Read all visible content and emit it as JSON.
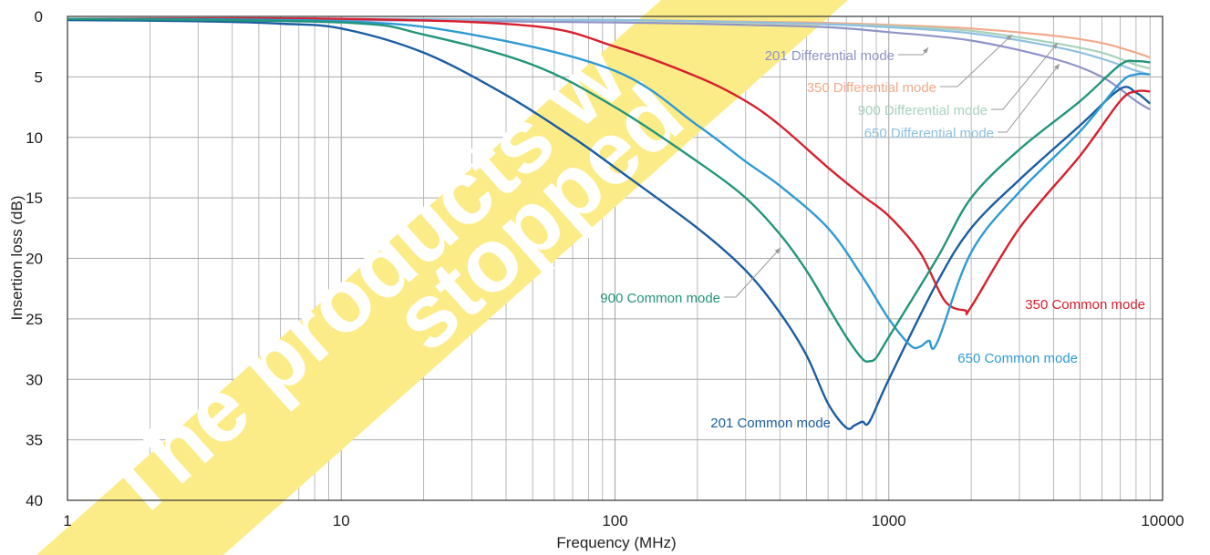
{
  "chart_data": {
    "type": "line",
    "title": "",
    "xlabel": "Frequency (MHz)",
    "ylabel": "Insertion loss (dB)",
    "x_scale": "log",
    "xlim": [
      1,
      10000
    ],
    "ylim": [
      0,
      40
    ],
    "y_inverted": true,
    "grid": true,
    "x_ticks": [
      "1",
      "10",
      "100",
      "1000",
      "10000"
    ],
    "y_ticks": [
      "0",
      "5",
      "10",
      "15",
      "20",
      "25",
      "30",
      "35",
      "40"
    ],
    "series": [
      {
        "name": "201 Differential mode",
        "color": "#8f93c6",
        "x": [
          1,
          10,
          100,
          300,
          600,
          1000,
          2000,
          4000,
          6000,
          8000,
          9000
        ],
        "y": [
          0.2,
          0.3,
          0.5,
          0.7,
          0.9,
          1.3,
          2.0,
          3.5,
          5.0,
          7.0,
          7.7
        ]
      },
      {
        "name": "350 Differential mode",
        "color": "#f1a98a",
        "x": [
          1,
          10,
          100,
          500,
          1000,
          2000,
          4000,
          6000,
          8000,
          9000
        ],
        "y": [
          0.2,
          0.2,
          0.3,
          0.5,
          0.7,
          1.0,
          1.6,
          2.2,
          3.0,
          3.4
        ]
      },
      {
        "name": "900 Differential mode",
        "color": "#a8d1bd",
        "x": [
          1,
          10,
          100,
          500,
          1000,
          2000,
          4000,
          6000,
          8000,
          9000
        ],
        "y": [
          0.2,
          0.2,
          0.3,
          0.6,
          0.8,
          1.2,
          2.2,
          3.0,
          4.0,
          4.3
        ]
      },
      {
        "name": "650 Differential mode",
        "color": "#8fc0e0",
        "x": [
          1,
          10,
          100,
          500,
          1000,
          2000,
          4000,
          6000,
          8000,
          9000
        ],
        "y": [
          0.2,
          0.2,
          0.3,
          0.6,
          0.9,
          1.4,
          2.5,
          3.5,
          4.5,
          4.8
        ]
      },
      {
        "name": "201 Common mode",
        "color": "#1b5da1",
        "x": [
          1,
          3,
          6,
          10,
          20,
          40,
          70,
          100,
          200,
          300,
          400,
          500,
          600,
          700,
          750,
          800,
          850,
          1000,
          1500,
          2000,
          3000,
          5000,
          7000,
          8000,
          9000
        ],
        "y": [
          0.3,
          0.4,
          0.6,
          1.0,
          3.0,
          6.5,
          10.0,
          12.5,
          17.5,
          21.0,
          24.5,
          28.0,
          32.0,
          34.0,
          33.8,
          33.5,
          33.5,
          30.0,
          22.0,
          17.5,
          13.5,
          9.0,
          6.0,
          6.3,
          7.2
        ]
      },
      {
        "name": "350 Common mode",
        "color": "#d7202e",
        "x": [
          1,
          10,
          50,
          100,
          200,
          300,
          400,
          600,
          800,
          1000,
          1300,
          1600,
          1900,
          2000,
          3000,
          5000,
          7000,
          8000,
          9000
        ],
        "y": [
          0.2,
          0.2,
          0.8,
          2.5,
          5.0,
          7.0,
          9.0,
          12.5,
          14.8,
          16.5,
          19.5,
          23.5,
          24.3,
          24.0,
          17.5,
          11.5,
          7.0,
          6.2,
          6.2
        ]
      },
      {
        "name": "650 Common mode",
        "color": "#2f9ad4",
        "x": [
          1,
          10,
          30,
          100,
          200,
          300,
          400,
          600,
          800,
          1000,
          1200,
          1300,
          1400,
          1500,
          2000,
          3000,
          5000,
          7000,
          8000,
          9000
        ],
        "y": [
          0.2,
          0.4,
          1.5,
          4.5,
          9.0,
          12.0,
          14.0,
          17.5,
          21.5,
          25.0,
          27.2,
          27.3,
          26.8,
          27.0,
          19.5,
          14.5,
          9.5,
          5.5,
          4.8,
          4.8
        ]
      },
      {
        "name": "900 Common mode",
        "color": "#22957a",
        "x": [
          1,
          10,
          20,
          50,
          100,
          200,
          300,
          400,
          500,
          600,
          700,
          800,
          850,
          900,
          1000,
          1500,
          2000,
          3000,
          5000,
          7000,
          8000,
          9000
        ],
        "y": [
          0.2,
          0.5,
          1.5,
          4.0,
          7.5,
          12.0,
          15.0,
          18.0,
          21.0,
          24.0,
          26.5,
          28.3,
          28.5,
          28.2,
          26.5,
          20.0,
          15.0,
          11.0,
          7.0,
          4.0,
          3.7,
          3.8
        ]
      }
    ],
    "annotations": [
      {
        "text": "201 Differential mode",
        "color": "#8f93c6"
      },
      {
        "text": "350 Differential mode",
        "color": "#f1a98a"
      },
      {
        "text": "900  Differential mode",
        "color": "#a8d1bd"
      },
      {
        "text": "650 Differential mode",
        "color": "#8fc0e0"
      },
      {
        "text": "900 Common mode",
        "color": "#22957a"
      },
      {
        "text": "350 Common mode",
        "color": "#d7202e"
      },
      {
        "text": "650 Common mode",
        "color": "#2f9ad4"
      },
      {
        "text": "201 Common mode",
        "color": "#1b5da1"
      }
    ]
  },
  "watermark": {
    "line1": "The products w",
    "line2": "stopped",
    "band_color": "#fcec87"
  }
}
